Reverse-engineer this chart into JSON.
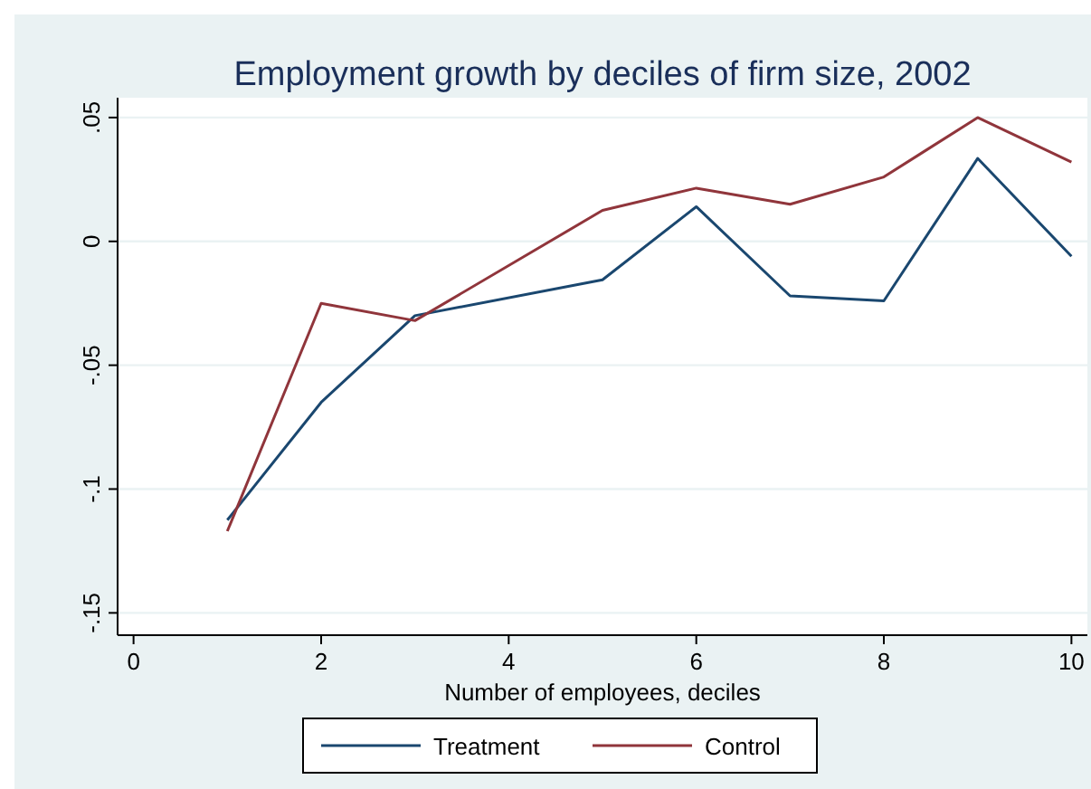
{
  "chart_data": {
    "type": "line",
    "title": "Employment growth by deciles of firm size, 2002",
    "xlabel": "Number of employees, deciles",
    "x": [
      1,
      2,
      3,
      5,
      6,
      7,
      8,
      9,
      10
    ],
    "series": [
      {
        "name": "Treatment",
        "color": "#1a476f",
        "values": [
          -0.1125,
          -0.065,
          -0.03,
          -0.0155,
          0.014,
          -0.022,
          -0.024,
          0.0335,
          -0.006
        ]
      },
      {
        "name": "Control",
        "color": "#90353b",
        "values": [
          -0.117,
          -0.025,
          -0.032,
          0.0125,
          0.0215,
          0.015,
          0.026,
          0.05,
          0.032
        ]
      }
    ],
    "xlim": [
      -0.17,
      10.17
    ],
    "ylim": [
      -0.159,
      0.058
    ],
    "xticks": [
      0,
      2,
      4,
      6,
      8,
      10
    ],
    "yticks": [
      {
        "value": -0.15,
        "label": "-.15"
      },
      {
        "value": -0.1,
        "label": "-.1"
      },
      {
        "value": -0.05,
        "label": "-.05"
      },
      {
        "value": 0,
        "label": "0"
      },
      {
        "value": 0.05,
        "label": ".05"
      }
    ],
    "grid": "y",
    "legend": "bottom",
    "marker": "none",
    "line_style": "solid"
  }
}
